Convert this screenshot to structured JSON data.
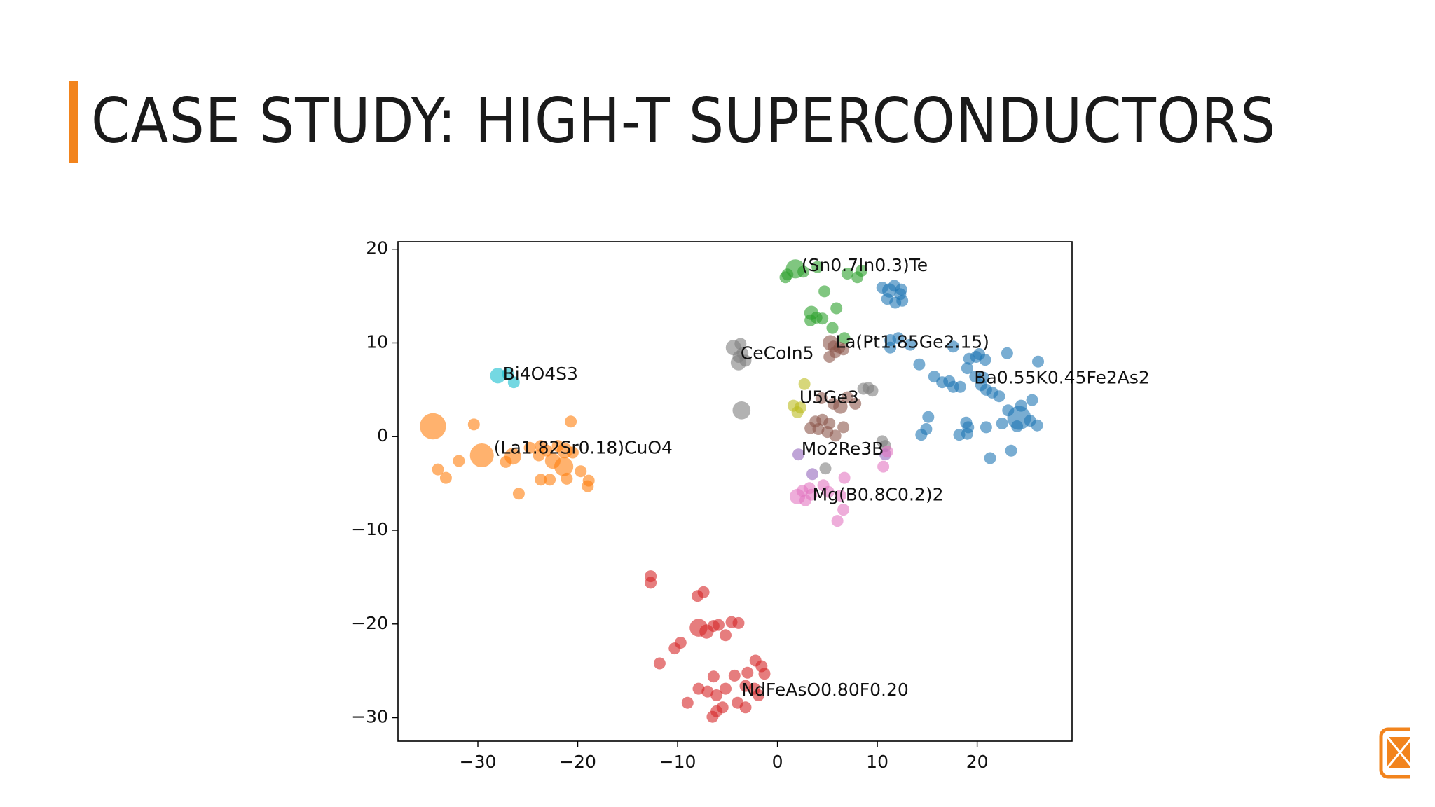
{
  "slide": {
    "title": "CASE STUDY: HIGH-T SUPERCONDUCTORS"
  },
  "logo": {
    "icon": "orange-rounded-square-logo-icon",
    "color": "#f2841d"
  },
  "chart_data": {
    "type": "scatter",
    "title": "",
    "xlabel": "",
    "ylabel": "",
    "xlim": [
      -38,
      29.5
    ],
    "ylim": [
      -32.5,
      20.8
    ],
    "xticks": [
      -30,
      -20,
      -10,
      0,
      10,
      20
    ],
    "yticks": [
      20,
      10,
      0,
      -10,
      -20,
      -30
    ],
    "xtick_labels": [
      "−30",
      "−20",
      "−10",
      "0",
      "10",
      "20"
    ],
    "ytick_labels": [
      "20",
      "10",
      "0",
      "−10",
      "−20",
      "−30"
    ],
    "grid": false,
    "legend": "none",
    "clusters": [
      {
        "color": "#ff7f0e",
        "points": [
          [
            -34.5,
            1.1,
            2.2
          ],
          [
            -30.4,
            1.3,
            1
          ],
          [
            -20.7,
            1.6,
            1
          ],
          [
            -31.9,
            -2.6,
            1
          ],
          [
            -29.6,
            -2.0,
            2
          ],
          [
            -26.5,
            -2.1,
            1.4
          ],
          [
            -27.2,
            -2.7,
            1
          ],
          [
            -24.8,
            -1.2,
            1
          ],
          [
            -23.7,
            -1.0,
            1
          ],
          [
            -23.1,
            -1.5,
            1
          ],
          [
            -22.0,
            -1.0,
            1
          ],
          [
            -21.3,
            -1.5,
            1.3
          ],
          [
            -20.5,
            -1.7,
            1
          ],
          [
            -23.9,
            -2.0,
            1
          ],
          [
            -22.5,
            -2.6,
            1.3
          ],
          [
            -21.4,
            -3.2,
            1.6
          ],
          [
            -19.7,
            -3.7,
            1
          ],
          [
            -22.8,
            -4.6,
            1
          ],
          [
            -23.7,
            -4.6,
            1
          ],
          [
            -21.1,
            -4.5,
            1
          ],
          [
            -18.9,
            -4.7,
            1
          ],
          [
            -19.0,
            -5.3,
            1
          ],
          [
            -25.9,
            -6.1,
            1
          ],
          [
            -34.0,
            -3.5,
            1
          ],
          [
            -33.2,
            -4.4,
            1
          ]
        ]
      },
      {
        "color": "#17becf",
        "points": [
          [
            -28.0,
            6.5,
            1.3
          ],
          [
            -27.0,
            6.7,
            1
          ],
          [
            -26.4,
            5.8,
            1
          ]
        ]
      },
      {
        "color": "#2ca02c",
        "points": [
          [
            1.8,
            17.9,
            1.6
          ],
          [
            1.0,
            17.3,
            1
          ],
          [
            2.6,
            17.6,
            1
          ],
          [
            0.8,
            17.0,
            1
          ],
          [
            4.0,
            18.1,
            1
          ],
          [
            7.0,
            17.4,
            1
          ],
          [
            8.0,
            17.0,
            1
          ],
          [
            8.4,
            17.7,
            1
          ],
          [
            4.7,
            15.5,
            1
          ],
          [
            3.4,
            13.2,
            1.2
          ],
          [
            3.9,
            12.7,
            1
          ],
          [
            3.3,
            12.4,
            1
          ],
          [
            4.5,
            12.6,
            1
          ],
          [
            5.9,
            13.7,
            1
          ],
          [
            5.5,
            11.6,
            1
          ],
          [
            6.7,
            10.5,
            1
          ]
        ]
      },
      {
        "color": "#1f77b4",
        "points": [
          [
            11.2,
            15.6,
            1.2
          ],
          [
            11.7,
            16.1,
            1
          ],
          [
            12.3,
            15.2,
            1
          ],
          [
            12.4,
            15.7,
            1
          ],
          [
            11.0,
            14.7,
            1
          ],
          [
            12.5,
            14.5,
            1
          ],
          [
            10.5,
            15.9,
            1
          ],
          [
            11.8,
            14.3,
            1
          ],
          [
            11.3,
            10.3,
            1
          ],
          [
            11.3,
            9.5,
            1
          ],
          [
            12.1,
            10.5,
            1
          ],
          [
            13.3,
            9.8,
            1
          ],
          [
            14.2,
            7.7,
            1
          ],
          [
            15.7,
            6.4,
            1
          ],
          [
            16.5,
            5.8,
            1
          ],
          [
            17.2,
            5.9,
            1
          ],
          [
            17.6,
            9.6,
            1
          ],
          [
            19.2,
            8.3,
            1
          ],
          [
            19.9,
            8.5,
            1
          ],
          [
            20.2,
            8.8,
            1
          ],
          [
            20.8,
            8.2,
            1
          ],
          [
            23.0,
            8.9,
            1
          ],
          [
            26.1,
            8.0,
            1
          ],
          [
            19.0,
            7.3,
            1
          ],
          [
            19.8,
            6.4,
            1
          ],
          [
            20.4,
            5.5,
            1
          ],
          [
            20.9,
            5.0,
            1
          ],
          [
            21.5,
            4.7,
            1
          ],
          [
            22.2,
            4.3,
            1
          ],
          [
            18.3,
            5.3,
            1
          ],
          [
            17.6,
            5.3,
            1
          ],
          [
            20.6,
            6.3,
            1
          ],
          [
            15.1,
            2.1,
            1
          ],
          [
            14.9,
            0.8,
            1
          ],
          [
            14.4,
            0.2,
            1
          ],
          [
            18.9,
            1.5,
            1
          ],
          [
            19.1,
            1.0,
            1
          ],
          [
            19.0,
            0.3,
            1
          ],
          [
            18.2,
            0.2,
            1
          ],
          [
            20.9,
            1.0,
            1
          ],
          [
            22.5,
            1.4,
            1
          ],
          [
            24.2,
            2.0,
            2
          ],
          [
            23.1,
            2.8,
            1
          ],
          [
            24.4,
            3.3,
            1
          ],
          [
            25.5,
            3.9,
            1
          ],
          [
            25.3,
            1.7,
            1
          ],
          [
            26.0,
            1.2,
            1
          ],
          [
            24.0,
            1.1,
            1
          ],
          [
            23.4,
            -1.5,
            1
          ],
          [
            21.3,
            -2.3,
            1
          ]
        ]
      },
      {
        "color": "#8c564b",
        "points": [
          [
            5.3,
            10.0,
            1.3
          ],
          [
            6.2,
            9.5,
            1
          ],
          [
            5.6,
            9.6,
            1
          ],
          [
            6.6,
            9.3,
            1
          ],
          [
            5.8,
            9.0,
            1
          ],
          [
            5.2,
            8.5,
            1
          ],
          [
            4.4,
            4.1,
            1
          ],
          [
            5.6,
            3.5,
            1
          ],
          [
            6.3,
            3.2,
            1.2
          ],
          [
            7.0,
            4.2,
            1
          ],
          [
            7.8,
            3.5,
            1
          ],
          [
            3.8,
            1.6,
            1
          ],
          [
            4.5,
            1.8,
            1
          ],
          [
            5.2,
            1.4,
            1
          ],
          [
            3.3,
            0.9,
            1
          ],
          [
            4.1,
            0.8,
            1
          ],
          [
            5.0,
            0.5,
            1
          ],
          [
            5.8,
            0.1,
            1
          ],
          [
            6.6,
            1.0,
            1
          ]
        ]
      },
      {
        "color": "#7f7f7f",
        "points": [
          [
            -4.4,
            9.5,
            1.3
          ],
          [
            -3.7,
            9.9,
            1
          ],
          [
            -3.5,
            8.9,
            1
          ],
          [
            -3.9,
            8.5,
            1
          ],
          [
            -3.9,
            7.9,
            1.3
          ],
          [
            -3.2,
            8.1,
            1
          ],
          [
            -3.6,
            2.8,
            1.5
          ],
          [
            8.6,
            5.1,
            1
          ],
          [
            9.1,
            5.2,
            1
          ],
          [
            9.5,
            4.9,
            1
          ],
          [
            10.5,
            -0.5,
            1
          ],
          [
            10.8,
            -1.0,
            1
          ],
          [
            4.8,
            -3.4,
            1
          ]
        ]
      },
      {
        "color": "#bcbd22",
        "points": [
          [
            2.7,
            5.6,
            1
          ],
          [
            1.6,
            3.3,
            1
          ],
          [
            2.3,
            3.1,
            1
          ],
          [
            2.0,
            2.6,
            1
          ]
        ]
      },
      {
        "color": "#9467bd",
        "points": [
          [
            2.1,
            -1.9,
            1
          ],
          [
            3.5,
            -4.0,
            1
          ],
          [
            10.8,
            -1.9,
            1
          ]
        ]
      },
      {
        "color": "#e377c2",
        "points": [
          [
            2.0,
            -6.4,
            1.3
          ],
          [
            2.8,
            -6.8,
            1
          ],
          [
            3.4,
            -6.2,
            1
          ],
          [
            3.2,
            -5.5,
            1
          ],
          [
            4.6,
            -5.2,
            1
          ],
          [
            5.1,
            -5.9,
            1
          ],
          [
            6.3,
            -6.3,
            1
          ],
          [
            6.6,
            -7.8,
            1
          ],
          [
            6.0,
            -9.0,
            1
          ],
          [
            6.7,
            -4.4,
            1
          ],
          [
            2.5,
            -5.8,
            1
          ],
          [
            10.6,
            -3.2,
            1
          ],
          [
            11.0,
            -1.6,
            1
          ]
        ]
      },
      {
        "color": "#d62728",
        "points": [
          [
            -12.7,
            -14.9,
            1
          ],
          [
            -12.7,
            -15.6,
            1
          ],
          [
            -8.0,
            -17.0,
            1
          ],
          [
            -7.4,
            -16.6,
            1
          ],
          [
            -7.9,
            -20.4,
            1.5
          ],
          [
            -7.1,
            -20.8,
            1.2
          ],
          [
            -6.4,
            -20.2,
            1
          ],
          [
            -5.9,
            -20.1,
            1
          ],
          [
            -5.2,
            -21.2,
            1
          ],
          [
            -4.6,
            -19.8,
            1
          ],
          [
            -3.9,
            -19.9,
            1
          ],
          [
            -10.3,
            -22.6,
            1
          ],
          [
            -9.7,
            -22.0,
            1
          ],
          [
            -11.8,
            -24.2,
            1
          ],
          [
            -6.4,
            -25.6,
            1
          ],
          [
            -4.3,
            -25.5,
            1
          ],
          [
            -3.0,
            -25.2,
            1
          ],
          [
            -2.2,
            -23.9,
            1
          ],
          [
            -1.6,
            -24.5,
            1
          ],
          [
            -1.3,
            -25.3,
            1
          ],
          [
            -7.9,
            -26.9,
            1
          ],
          [
            -7.0,
            -27.2,
            1
          ],
          [
            -6.1,
            -27.6,
            1
          ],
          [
            -5.2,
            -26.9,
            1
          ],
          [
            -3.2,
            -26.6,
            1
          ],
          [
            -2.3,
            -26.9,
            1
          ],
          [
            -1.9,
            -27.6,
            1
          ],
          [
            -4.0,
            -28.4,
            1
          ],
          [
            -3.2,
            -28.9,
            1
          ],
          [
            -5.5,
            -28.9,
            1
          ],
          [
            -6.1,
            -29.3,
            1
          ],
          [
            -6.5,
            -29.9,
            1
          ],
          [
            -9.0,
            -28.4,
            1
          ]
        ]
      }
    ],
    "annotations": [
      {
        "text": "(Sn0.7In0.3)Te",
        "x": 2.4,
        "y": 18.2
      },
      {
        "text": "La(Pt1.85Ge2.15)",
        "x": 5.8,
        "y": 10.0
      },
      {
        "text": "CeCoIn5",
        "x": -3.7,
        "y": 8.8
      },
      {
        "text": "Bi4O4S3",
        "x": -27.5,
        "y": 6.6
      },
      {
        "text": "Ba0.55K0.45Fe2As2",
        "x": 19.7,
        "y": 6.2
      },
      {
        "text": "U5Ge3",
        "x": 2.2,
        "y": 4.1
      },
      {
        "text": "(La1.82Sr0.18)CuO4",
        "x": -28.4,
        "y": -1.3
      },
      {
        "text": "Mo2Re3B",
        "x": 2.4,
        "y": -1.4
      },
      {
        "text": "Mg(B0.8C0.2)2",
        "x": 3.5,
        "y": -6.3
      },
      {
        "text": "NdFeAsO0.80F0.20",
        "x": -3.6,
        "y": -27.1
      }
    ]
  }
}
